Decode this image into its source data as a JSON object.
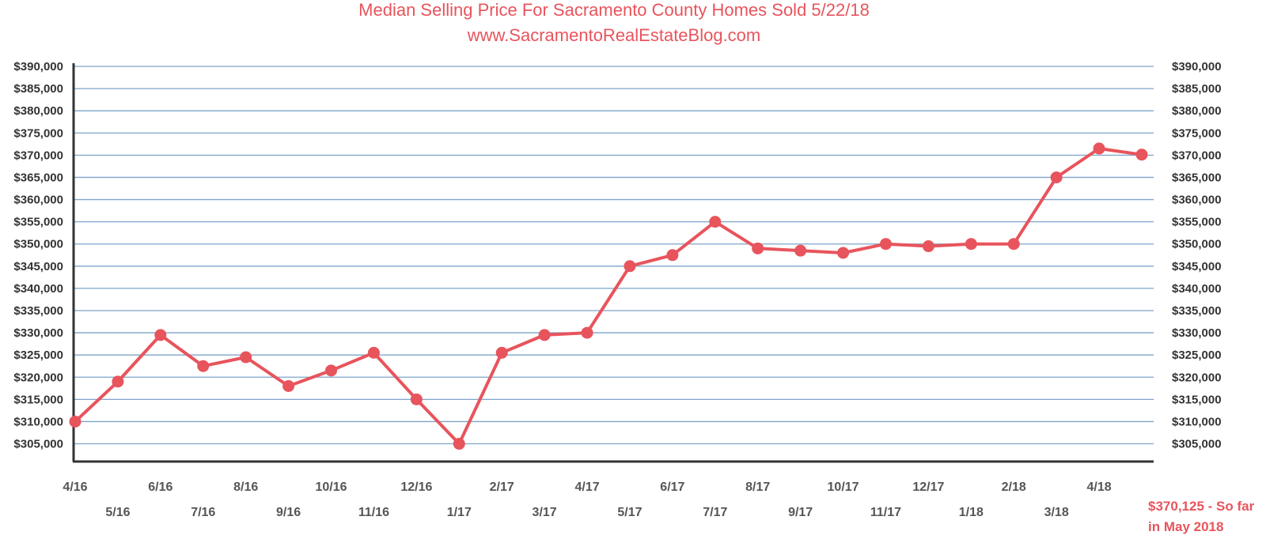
{
  "chart_data": {
    "type": "line",
    "title": "Median Selling Price For Sacramento County Homes Sold 5/22/18",
    "subtitle": "www.SacramentoRealEstateBlog.com",
    "xlabel": "",
    "ylabel": "",
    "categories": [
      "4/16",
      "5/16",
      "6/16",
      "7/16",
      "8/16",
      "9/16",
      "10/16",
      "11/16",
      "12/16",
      "1/17",
      "2/17",
      "3/17",
      "4/17",
      "5/17",
      "6/17",
      "7/17",
      "8/17",
      "9/17",
      "10/17",
      "11/17",
      "12/17",
      "1/18",
      "2/18",
      "3/18",
      "4/18",
      "5/18"
    ],
    "x_tick_labels": [
      "4/16",
      "5/16",
      "6/16",
      "7/16",
      "8/16",
      "9/16",
      "10/16",
      "11/16",
      "12/16",
      "1/17",
      "2/17",
      "3/17",
      "4/17",
      "5/17",
      "6/17",
      "7/17",
      "8/17",
      "9/17",
      "10/17",
      "11/17",
      "12/17",
      "1/18",
      "2/18",
      "3/18",
      "4/18"
    ],
    "series": [
      {
        "values": [
          310000,
          319000,
          329500,
          322500,
          324500,
          318000,
          321500,
          325500,
          315000,
          305000,
          325500,
          329500,
          330000,
          345000,
          347500,
          355000,
          349000,
          348500,
          348000,
          350000,
          349500,
          350000,
          350000,
          365000,
          371500,
          370125
        ]
      }
    ],
    "y_ticks": [
      305000,
      310000,
      315000,
      320000,
      325000,
      330000,
      335000,
      340000,
      345000,
      350000,
      355000,
      360000,
      365000,
      370000,
      375000,
      380000,
      385000,
      390000
    ],
    "y_tick_labels": [
      "$305,000",
      "$310,000",
      "$315,000",
      "$320,000",
      "$325,000",
      "$330,000",
      "$335,000",
      "$340,000",
      "$345,000",
      "$350,000",
      "$355,000",
      "$360,000",
      "$365,000",
      "$370,000",
      "$375,000",
      "$380,000",
      "$385,000",
      "$390,000"
    ],
    "ylim": [
      301000,
      390000
    ],
    "y_axis_sides": "left and right",
    "grid": true,
    "legend": "none",
    "annotation": {
      "line1": "$370,125 - So far",
      "line2": "in May 2018"
    },
    "colors": {
      "line": "#e8545c",
      "marker": "#e8545c",
      "grid": "#7ea4c9",
      "axis": "#333333",
      "title": "#e8545c",
      "annotation": "#e8545c"
    }
  }
}
